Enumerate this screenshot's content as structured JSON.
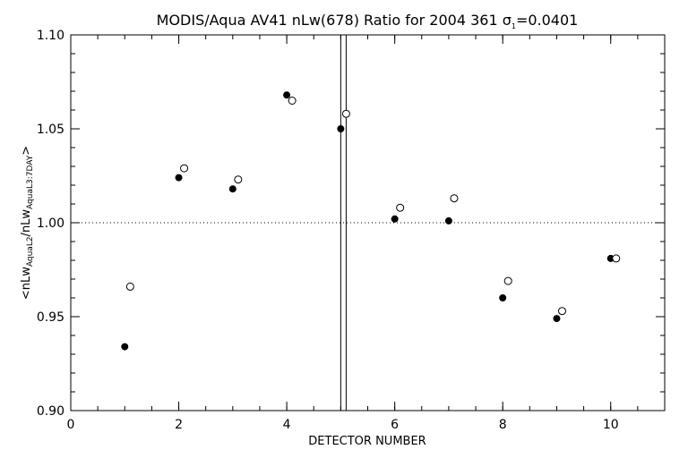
{
  "chart_data": {
    "type": "scatter",
    "title_main": "MODIS/Aqua AV41 nLw(678) Ratio for 2004 361 ",
    "title_sigma": "σ",
    "title_sigma_sub": "1",
    "title_sigma_value": "=0.0401",
    "xlabel": "DETECTOR NUMBER",
    "ylabel_parts": {
      "open": "<nLw",
      "sub1": "AquaL2",
      "mid": "/nLw",
      "sub2": "AquaL3:7DAY",
      "close": ">"
    },
    "xlim": [
      0,
      11
    ],
    "ylim": [
      0.9,
      1.1
    ],
    "x_ticks": [
      0,
      2,
      4,
      6,
      8,
      10
    ],
    "x_minor_step": 0.5,
    "y_ticks": [
      {
        "value": 0.9,
        "label": "0.90"
      },
      {
        "value": 0.95,
        "label": "0.95"
      },
      {
        "value": 1.0,
        "label": "1.00"
      },
      {
        "value": 1.05,
        "label": "1.05"
      },
      {
        "value": 1.1,
        "label": "1.10"
      }
    ],
    "y_minor_step": 0.01,
    "reference_line": {
      "y": 1.0,
      "style": "dotted"
    },
    "vertical_lines": [
      5.0,
      5.1
    ],
    "series": [
      {
        "marker": "filled-circle",
        "x": [
          1,
          2,
          3,
          4,
          5,
          6,
          7,
          8,
          9,
          10
        ],
        "y": [
          0.934,
          1.024,
          1.018,
          1.068,
          1.05,
          1.002,
          1.001,
          0.96,
          0.949,
          0.981
        ]
      },
      {
        "marker": "open-circle",
        "x": [
          1.1,
          2.1,
          3.1,
          4.1,
          5.1,
          6.1,
          7.1,
          8.1,
          9.1,
          10.1
        ],
        "y": [
          0.966,
          1.029,
          1.023,
          1.065,
          1.058,
          1.008,
          1.013,
          0.969,
          0.953,
          0.981
        ]
      }
    ]
  }
}
